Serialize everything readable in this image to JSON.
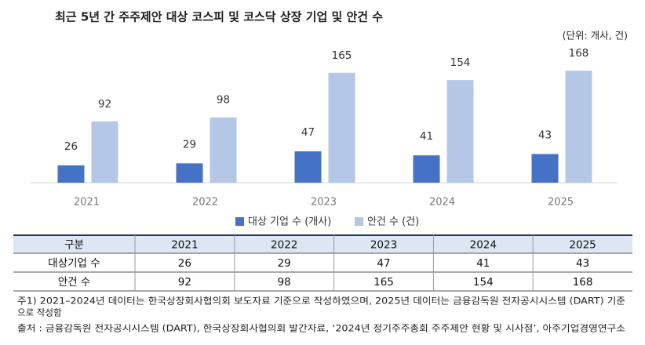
{
  "chart_data": {
    "type": "bar",
    "title": "최근 5년 간 주주제안 대상 코스피 및 코스닥 상장 기업 및 안건 수",
    "unit_note": "(단위: 개사, 건)",
    "categories": [
      "2021",
      "2022",
      "2023",
      "2024",
      "2025"
    ],
    "series": [
      {
        "name": "대상 기업 수 (개사)",
        "color": "#4472c4",
        "values": [
          26,
          29,
          47,
          41,
          43
        ]
      },
      {
        "name": "안건 수 (건)",
        "color": "#b4c7e7",
        "values": [
          92,
          98,
          165,
          154,
          168
        ]
      }
    ],
    "ylim": [
      0,
      200
    ]
  },
  "table": {
    "header": [
      "구분",
      "2021",
      "2022",
      "2023",
      "2024",
      "2025"
    ],
    "rows": [
      [
        "대상기업 수",
        "26",
        "29",
        "47",
        "41",
        "43"
      ],
      [
        "안건 수",
        "92",
        "98",
        "165",
        "154",
        "168"
      ]
    ]
  },
  "notes": [
    "주1) 2021–2024년 데이터는 한국상장회사협의회 보도자료 기준으로 작성하였으며, 2025년 데이터는 금융감독원 전자공시시스템 (DART) 기준",
    "으로 작성함",
    "출처 : 금융감독원 전자공시시스템 (DART), 한국상장회사협의회 발간자료, ‘2024년 정기주주총회 주주제안 현황 및 시사점’, 아주기업경영연구소"
  ]
}
